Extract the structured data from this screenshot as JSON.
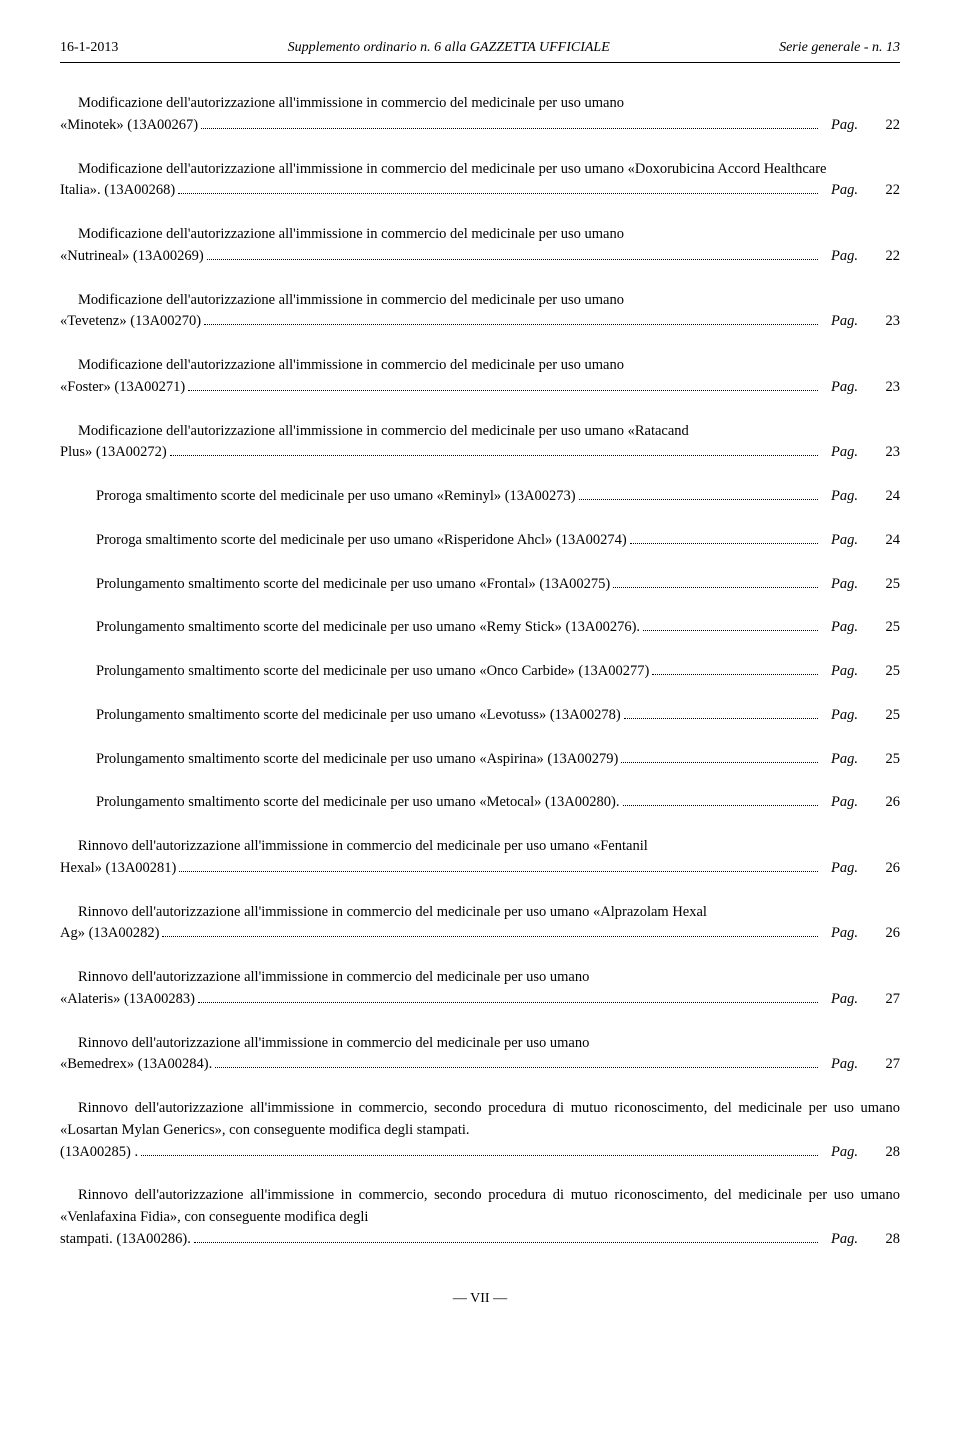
{
  "header": {
    "date": "16-1-2013",
    "center": "Supplemento ordinario n. 6 alla GAZZETTA UFFICIALE",
    "serie": "Serie generale - n. 13"
  },
  "pag_label": "Pag.",
  "entries": [
    {
      "text": "Modificazione dell'autorizzazione all'immissione in commercio del medicinale per uso umano «Minotek» (13A00267)",
      "page": "22",
      "multiline": true
    },
    {
      "text": "Modificazione dell'autorizzazione all'immissione in commercio del medicinale per uso umano «Doxorubicina Accord Healthcare Italia». (13A00268)",
      "page": "22",
      "multiline": true
    },
    {
      "text": "Modificazione dell'autorizzazione all'immissione in commercio del medicinale per uso umano «Nutrineal» (13A00269)",
      "page": "22",
      "multiline": true
    },
    {
      "text": "Modificazione dell'autorizzazione all'immissione in commercio del medicinale per uso umano «Tevetenz» (13A00270)",
      "page": "23",
      "multiline": true
    },
    {
      "text": "Modificazione dell'autorizzazione all'immissione in commercio del medicinale per uso umano «Foster» (13A00271)",
      "page": "23",
      "multiline": true
    },
    {
      "text": "Modificazione dell'autorizzazione all'immissione in commercio del medicinale per uso umano «Ratacand Plus» (13A00272)",
      "page": "23",
      "multiline": true
    },
    {
      "text": "Proroga smaltimento scorte del medicinale per uso umano «Reminyl» (13A00273)",
      "page": "24",
      "multiline": false
    },
    {
      "text": "Proroga smaltimento scorte del medicinale per uso umano «Risperidone Ahcl» (13A00274)",
      "page": "24",
      "multiline": false
    },
    {
      "text": "Prolungamento smaltimento scorte del medicinale per uso umano «Frontal» (13A00275)",
      "page": "25",
      "multiline": false
    },
    {
      "text": "Prolungamento smaltimento scorte del medicinale per uso umano «Remy Stick» (13A00276).",
      "page": "25",
      "multiline": false
    },
    {
      "text": "Prolungamento smaltimento scorte del medicinale per uso umano «Onco Carbide» (13A00277)",
      "page": "25",
      "multiline": false
    },
    {
      "text": "Prolungamento smaltimento scorte del medicinale per uso umano «Levotuss» (13A00278)",
      "page": "25",
      "multiline": false
    },
    {
      "text": "Prolungamento smaltimento scorte del medicinale per uso umano «Aspirina» (13A00279)",
      "page": "25",
      "multiline": false
    },
    {
      "text": "Prolungamento smaltimento scorte del medicinale per uso umano «Metocal» (13A00280).",
      "page": "26",
      "multiline": false
    },
    {
      "text": "Rinnovo dell'autorizzazione all'immissione in commercio del medicinale per uso umano «Fentanil Hexal» (13A00281)",
      "page": "26",
      "multiline": true
    },
    {
      "text": "Rinnovo dell'autorizzazione all'immissione in commercio del medicinale per uso umano «Alprazolam Hexal Ag» (13A00282)",
      "page": "26",
      "multiline": true
    },
    {
      "text": "Rinnovo dell'autorizzazione all'immissione in commercio del medicinale per uso umano «Alateris» (13A00283)",
      "page": "27",
      "multiline": true
    },
    {
      "text": "Rinnovo dell'autorizzazione all'immissione in commercio del medicinale per uso umano «Bemedrex» (13A00284).",
      "page": "27",
      "multiline": true
    },
    {
      "text": "Rinnovo dell'autorizzazione all'immissione in commercio, secondo procedura di mutuo riconoscimento, del medicinale per uso umano «Losartan Mylan Generics», con conseguente modifica degli stampati. (13A00285) .",
      "page": "28",
      "multiline": true
    },
    {
      "text": "Rinnovo dell'autorizzazione all'immissione in commercio, secondo procedura di mutuo riconoscimento, del medicinale per uso umano «Venlafaxina Fidia», con conseguente modifica degli stampati. (13A00286).",
      "page": "28",
      "multiline": true
    }
  ],
  "roman": "— VII —"
}
